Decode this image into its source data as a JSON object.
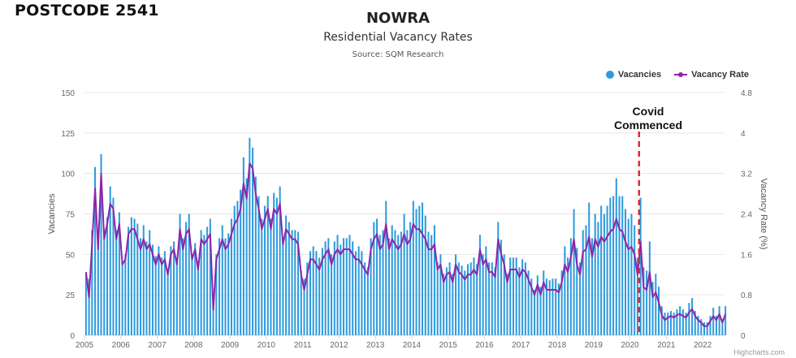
{
  "header": {
    "postcode": "POSTCODE 2541",
    "title": "NOWRA",
    "subtitle": "Residential Vacancy Rates",
    "source": "Source: SQM Research",
    "credits": "Highcharts.com"
  },
  "annotation": {
    "line1": "Covid",
    "line2": "Commenced",
    "x": 2020.25,
    "color": "#e8262c"
  },
  "chart_data": {
    "type": "bar",
    "xlabel": "",
    "ylabel": "Vacancies",
    "y2label": "Vacancy Rate (%)",
    "xlim": [
      2005,
      2022.6
    ],
    "ylim": [
      0,
      150
    ],
    "y2lim": [
      0,
      4.8
    ],
    "x_ticks": [
      "2005",
      "2006",
      "2007",
      "2008",
      "2009",
      "2010",
      "2011",
      "2012",
      "2013",
      "2014",
      "2015",
      "2016",
      "2017",
      "2018",
      "2019",
      "2020",
      "2021",
      "2022"
    ],
    "y_ticks": [
      0,
      25,
      50,
      75,
      100,
      125,
      150
    ],
    "y2_ticks": [
      "0",
      "0.8",
      "1.6",
      "2.4",
      "3.2",
      "4",
      "4.8"
    ],
    "grid": true,
    "legend_position": "top-right",
    "start": "2005-01",
    "interval": "month",
    "series": [
      {
        "name": "Vacancies",
        "type": "bar",
        "axis": "left",
        "color": "#2f9bdc",
        "values": [
          38,
          35,
          65,
          104,
          58,
          112,
          66,
          73,
          92,
          85,
          65,
          76,
          45,
          50,
          67,
          73,
          72,
          69,
          60,
          68,
          58,
          65,
          56,
          49,
          55,
          48,
          52,
          41,
          55,
          58,
          48,
          75,
          60,
          70,
          75,
          50,
          57,
          46,
          65,
          62,
          67,
          72,
          20,
          50,
          60,
          68,
          60,
          63,
          72,
          80,
          83,
          90,
          110,
          97,
          122,
          116,
          98,
          86,
          72,
          80,
          86,
          72,
          88,
          85,
          92,
          60,
          74,
          70,
          65,
          65,
          64,
          40,
          35,
          45,
          52,
          55,
          52,
          48,
          54,
          58,
          60,
          50,
          58,
          62,
          56,
          60,
          60,
          62,
          58,
          52,
          55,
          52,
          45,
          42,
          60,
          70,
          72,
          62,
          65,
          83,
          60,
          68,
          65,
          62,
          64,
          75,
          65,
          70,
          83,
          78,
          80,
          82,
          74,
          64,
          62,
          68,
          45,
          50,
          38,
          42,
          45,
          38,
          50,
          45,
          43,
          40,
          44,
          45,
          48,
          44,
          62,
          50,
          55,
          45,
          45,
          42,
          70,
          59,
          50,
          38,
          48,
          48,
          48,
          42,
          47,
          45,
          40,
          35,
          28,
          37,
          30,
          40,
          35,
          34,
          35,
          35,
          32,
          40,
          55,
          48,
          60,
          78,
          54,
          45,
          65,
          68,
          82,
          60,
          75,
          70,
          80,
          75,
          80,
          85,
          86,
          97,
          86,
          86,
          78,
          72,
          75,
          68,
          48,
          85,
          42,
          40,
          58,
          33,
          38,
          30,
          18,
          14,
          14,
          15,
          14,
          16,
          18,
          16,
          14,
          20,
          23,
          15,
          12,
          10,
          8,
          8,
          12,
          17,
          12,
          18,
          10,
          18
        ]
      },
      {
        "name": "Vacancy Rate",
        "type": "line",
        "axis": "right",
        "color": "#8e24aa",
        "values": [
          1.25,
          0.75,
          1.8,
          2.9,
          1.7,
          3.2,
          1.9,
          2.2,
          2.6,
          2.5,
          1.9,
          2.2,
          1.4,
          1.5,
          2.0,
          2.1,
          2.1,
          1.9,
          1.7,
          1.9,
          1.7,
          1.8,
          1.6,
          1.4,
          1.6,
          1.4,
          1.5,
          1.2,
          1.6,
          1.7,
          1.4,
          2.1,
          1.7,
          2.0,
          2.1,
          1.5,
          1.7,
          1.3,
          1.9,
          1.8,
          1.9,
          2.0,
          0.5,
          1.5,
          1.7,
          1.9,
          1.7,
          1.8,
          2.0,
          2.2,
          2.3,
          2.5,
          3.0,
          2.7,
          3.4,
          3.3,
          2.8,
          2.5,
          2.1,
          2.3,
          2.5,
          2.1,
          2.5,
          2.4,
          2.6,
          1.8,
          2.1,
          2.0,
          1.9,
          1.9,
          1.8,
          1.2,
          0.9,
          1.2,
          1.5,
          1.5,
          1.4,
          1.3,
          1.5,
          1.6,
          1.7,
          1.4,
          1.6,
          1.7,
          1.6,
          1.7,
          1.7,
          1.7,
          1.6,
          1.5,
          1.5,
          1.4,
          1.3,
          1.2,
          1.7,
          1.9,
          2.0,
          1.7,
          1.8,
          2.2,
          1.7,
          1.9,
          1.8,
          1.7,
          1.8,
          2.0,
          1.8,
          1.9,
          2.2,
          2.1,
          2.1,
          2.0,
          1.9,
          1.7,
          1.7,
          1.8,
          1.3,
          1.4,
          1.05,
          1.2,
          1.25,
          1.05,
          1.4,
          1.25,
          1.2,
          1.1,
          1.2,
          1.2,
          1.3,
          1.2,
          1.7,
          1.4,
          1.5,
          1.25,
          1.25,
          1.15,
          1.9,
          1.6,
          1.4,
          1.05,
          1.3,
          1.3,
          1.3,
          1.15,
          1.3,
          1.25,
          1.1,
          0.95,
          0.8,
          1.0,
          0.8,
          1.05,
          0.9,
          0.9,
          0.9,
          0.9,
          0.85,
          1.05,
          1.4,
          1.25,
          1.55,
          1.9,
          1.4,
          1.2,
          1.65,
          1.7,
          1.95,
          1.55,
          1.9,
          1.75,
          1.95,
          1.85,
          1.95,
          2.05,
          2.1,
          2.3,
          2.1,
          2.05,
          1.85,
          1.7,
          1.75,
          1.6,
          1.2,
          1.85,
          0.95,
          0.9,
          1.25,
          0.75,
          0.85,
          0.65,
          0.4,
          0.3,
          0.35,
          0.38,
          0.35,
          0.4,
          0.42,
          0.38,
          0.35,
          0.45,
          0.52,
          0.38,
          0.3,
          0.25,
          0.18,
          0.18,
          0.28,
          0.38,
          0.3,
          0.42,
          0.25,
          0.42
        ]
      }
    ]
  }
}
